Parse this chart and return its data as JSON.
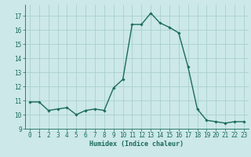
{
  "x": [
    0,
    1,
    2,
    3,
    4,
    5,
    6,
    7,
    8,
    9,
    10,
    11,
    12,
    13,
    14,
    15,
    16,
    17,
    18,
    19,
    20,
    21,
    22,
    23
  ],
  "y": [
    10.9,
    10.9,
    10.3,
    10.4,
    10.5,
    10.0,
    10.3,
    10.4,
    10.3,
    11.9,
    12.5,
    16.4,
    16.4,
    17.2,
    16.5,
    16.2,
    15.8,
    13.4,
    10.4,
    9.6,
    9.5,
    9.4,
    9.5,
    9.5
  ],
  "xlabel": "Humidex (Indice chaleur)",
  "xlim": [
    -0.5,
    23.5
  ],
  "ylim": [
    9,
    17.8
  ],
  "yticks": [
    9,
    10,
    11,
    12,
    13,
    14,
    15,
    16,
    17
  ],
  "xticks": [
    0,
    1,
    2,
    3,
    4,
    5,
    6,
    7,
    8,
    9,
    10,
    11,
    12,
    13,
    14,
    15,
    16,
    17,
    18,
    19,
    20,
    21,
    22,
    23
  ],
  "line_color": "#1a6b5e",
  "marker": "D",
  "marker_size": 1.8,
  "line_width": 1.0,
  "bg_color": "#cce8e8",
  "grid_color": "#aacfcf",
  "label_fontsize": 6,
  "tick_fontsize": 5.5
}
